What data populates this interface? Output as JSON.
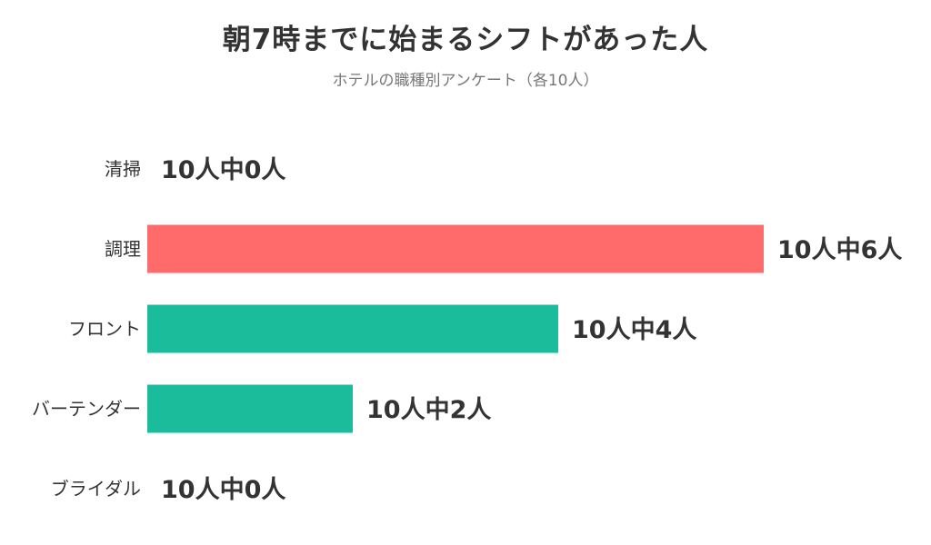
{
  "chart_data": {
    "type": "bar",
    "orientation": "horizontal",
    "title": "朝7時までに始まるシフトがあった人",
    "subtitle": "ホテルの職種別アンケート（各10人）",
    "categories": [
      "清掃",
      "調理",
      "フロント",
      "バーテンダー",
      "ブライダル"
    ],
    "values": [
      0,
      6,
      4,
      2,
      0
    ],
    "total": 10,
    "value_labels": [
      "10人中0人",
      "10人中6人",
      "10人中4人",
      "10人中2人",
      "10人中0人"
    ],
    "bar_colors": [
      "#1bbc9b",
      "#ff6b6b",
      "#1bbc9b",
      "#1bbc9b",
      "#1bbc9b"
    ],
    "xlim": [
      0,
      6
    ],
    "grid": false,
    "legend": "none"
  }
}
